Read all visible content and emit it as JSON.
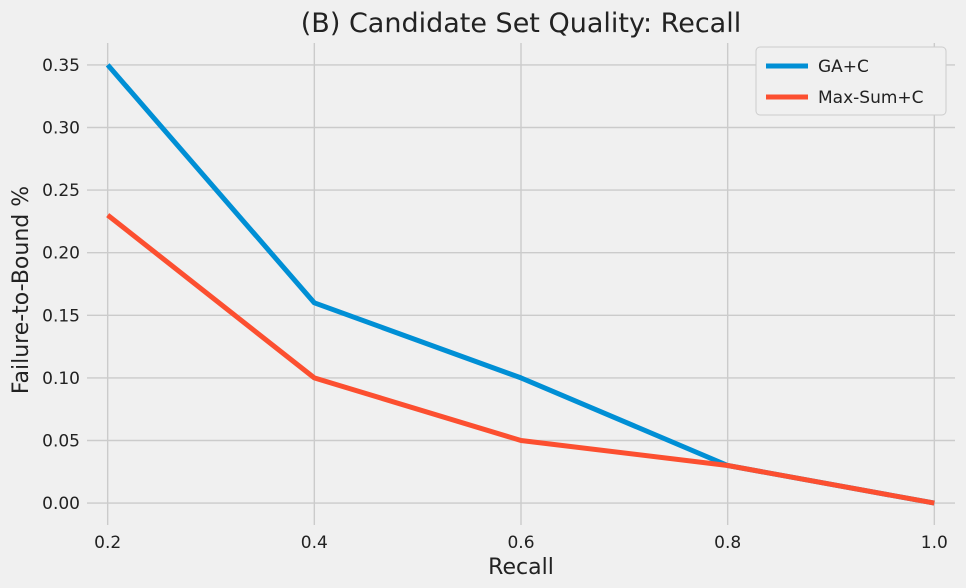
{
  "chart_data": {
    "type": "line",
    "title": "(B) Candidate Set Quality: Recall",
    "xlabel": "Recall",
    "ylabel": "Failure-to-Bound %",
    "x": [
      0.2,
      0.4,
      0.6,
      0.8,
      1.0
    ],
    "x_ticks": [
      "0.2",
      "0.4",
      "0.6",
      "0.8",
      "1.0"
    ],
    "y_ticks": [
      "0.00",
      "0.05",
      "0.10",
      "0.15",
      "0.20",
      "0.25",
      "0.30",
      "0.35"
    ],
    "xlim": [
      0.18,
      1.02
    ],
    "ylim": [
      -0.0175,
      0.3675
    ],
    "grid": true,
    "legend_position": "top-right",
    "series": [
      {
        "name": "GA+C",
        "color": "#008fd5",
        "values": [
          0.35,
          0.16,
          0.1,
          0.03,
          0.0
        ]
      },
      {
        "name": "Max-Sum+C",
        "color": "#fc4f30",
        "values": [
          0.23,
          0.1,
          0.05,
          0.03,
          0.0
        ]
      }
    ]
  }
}
